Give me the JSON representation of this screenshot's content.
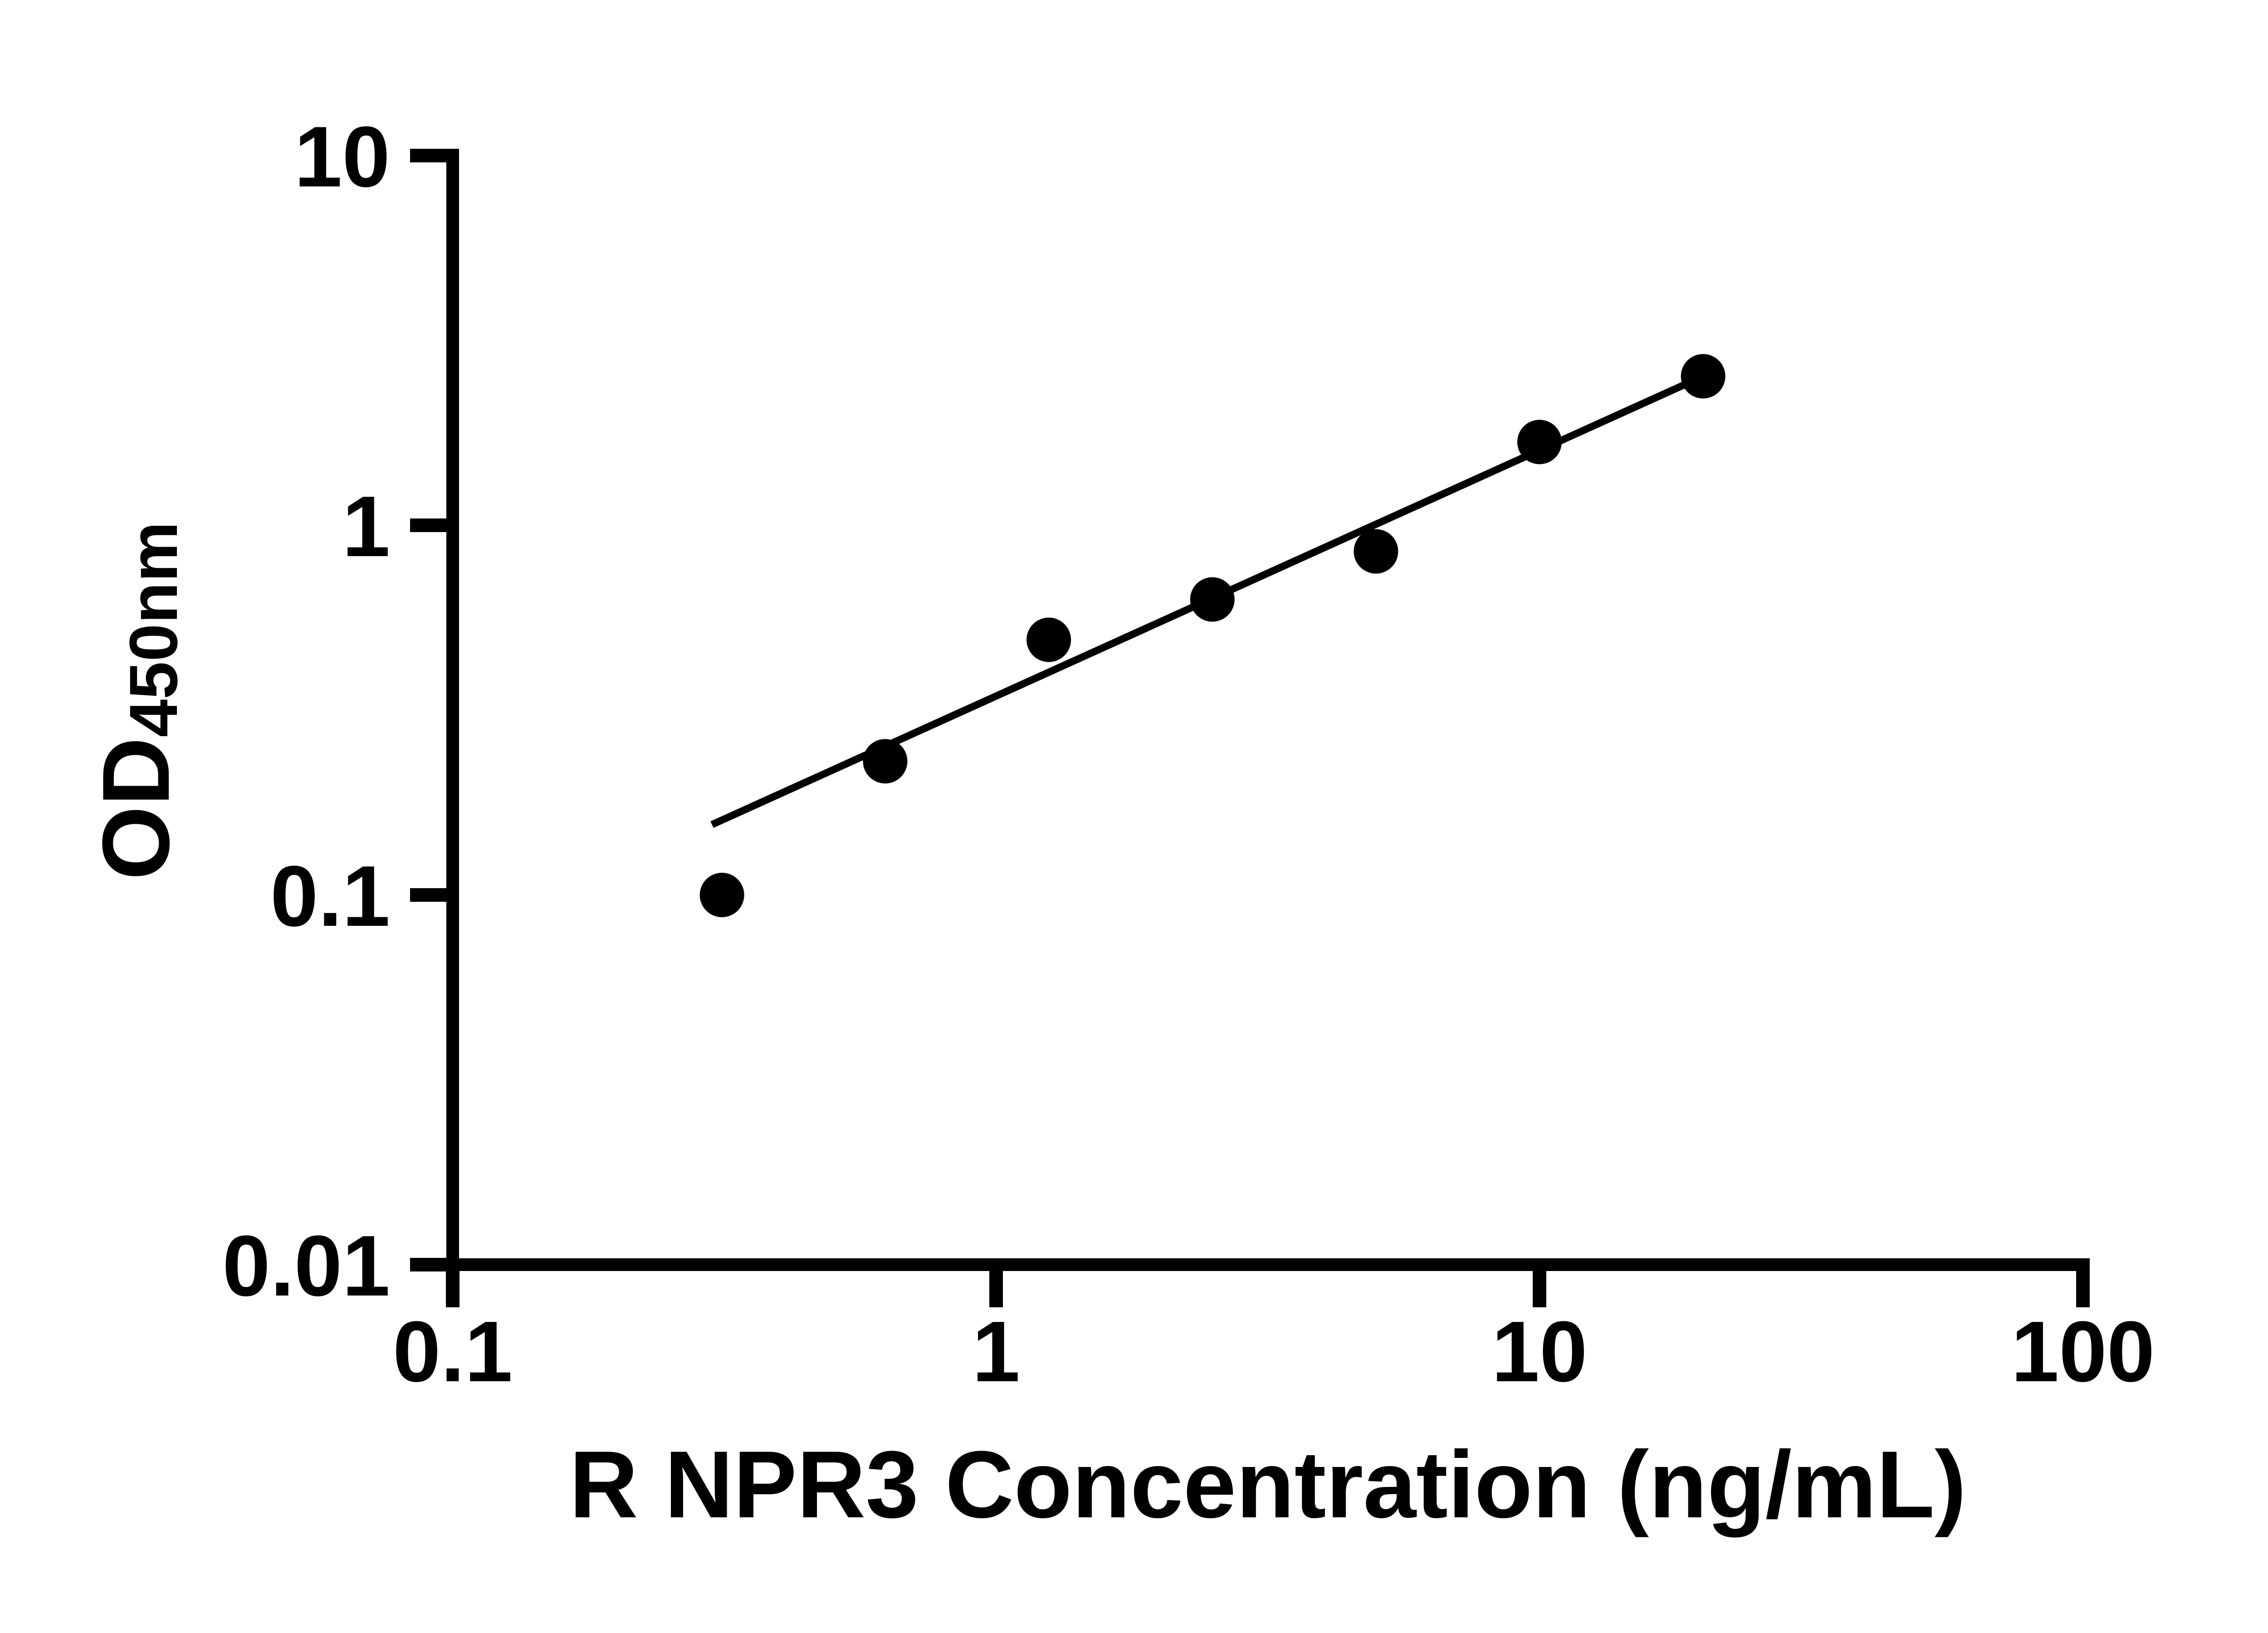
{
  "figure": {
    "background_color": "#ffffff",
    "ink_color": "#000000"
  },
  "chart_data": {
    "type": "scatter",
    "title": "",
    "xlabel": "R NPR3 Concentration (ng/mL)",
    "ylabel_main": "OD",
    "ylabel_sub": "450nm",
    "x_scale": "log",
    "y_scale": "log",
    "xlim": [
      0.1,
      100
    ],
    "ylim": [
      0.01,
      10
    ],
    "grid": false,
    "legend": null,
    "x_ticks": [
      {
        "value": 0.1,
        "label": "0.1"
      },
      {
        "value": 1,
        "label": "1"
      },
      {
        "value": 10,
        "label": "10"
      },
      {
        "value": 100,
        "label": "100"
      }
    ],
    "y_ticks": [
      {
        "value": 10,
        "label": "10"
      },
      {
        "value": 1,
        "label": "1"
      },
      {
        "value": 0.1,
        "label": "0.1"
      },
      {
        "value": 0.01,
        "label": "0.01"
      }
    ],
    "series": [
      {
        "name": "standard-curve-fit-line",
        "type": "line",
        "color": "#000000",
        "points": [
          {
            "x": 0.3,
            "y": 0.155
          },
          {
            "x": 20,
            "y": 2.53
          }
        ]
      },
      {
        "name": "standard-curve-points",
        "type": "scatter",
        "marker": "filled-circle",
        "color": "#000000",
        "points": [
          {
            "x": 0.313,
            "y": 0.1
          },
          {
            "x": 0.625,
            "y": 0.23
          },
          {
            "x": 1.25,
            "y": 0.49
          },
          {
            "x": 2.5,
            "y": 0.63
          },
          {
            "x": 5,
            "y": 0.85
          },
          {
            "x": 10,
            "y": 1.68
          },
          {
            "x": 20,
            "y": 2.53
          }
        ]
      }
    ]
  }
}
